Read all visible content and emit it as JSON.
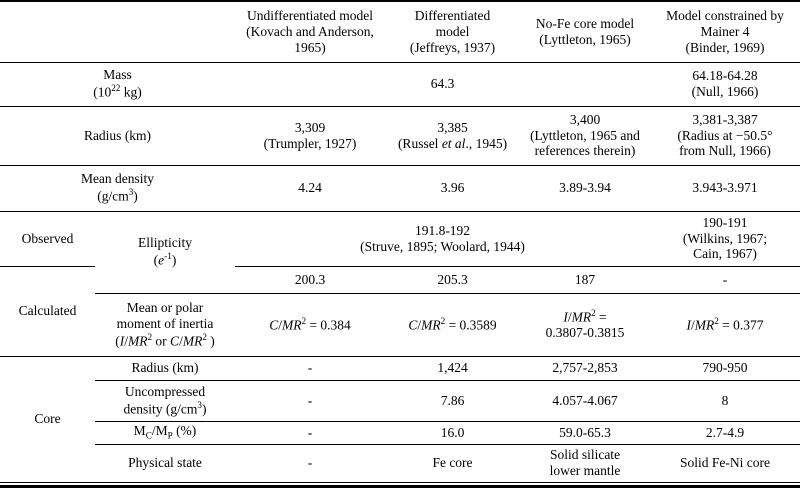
{
  "colors": {
    "text": "#000000",
    "rule": "#000000",
    "background": "#ffffff"
  },
  "table": {
    "header": {
      "undifferentiated": "Undifferentiated model<br>(Kovach and Anderson,<br>1965)",
      "differentiated": "Differentiated<br>model<br>(Jeffreys, 1937)",
      "no_fe": "No-Fe core model<br>(Lyttleton, 1965)",
      "mainer4": "Model constrained by<br>Mainer 4<br>(Binder, 1969)"
    },
    "groups": {
      "observed": "Observed",
      "calculated": "Calculated",
      "core": "Core"
    },
    "mass": {
      "label": "Mass<br>(10<sup>22</sup> kg)",
      "common": "64.3",
      "mainer4": "64.18-64.28<br>(Null, 1966)"
    },
    "radius": {
      "label": "Radius (km)",
      "undifferentiated": "3,309<br>(Trumpler, 1927)",
      "differentiated": "3,385<br>(Russel <i>et al</i>., 1945)",
      "no_fe": "3,400<br>(Lyttleton, 1965 and<br>references therein)",
      "mainer4": "3,381-3,387<br>(Radius at −50.5°<br>from Null, 1966)"
    },
    "mean_density": {
      "label": "Mean density<br>(g/cm<sup>3</sup>)",
      "undifferentiated": "4.24",
      "differentiated": "3.96",
      "no_fe": "3.89-3.94",
      "mainer4": "3.943-3.971"
    },
    "ellipticity": {
      "label": "Ellipticity<br>(<i>e</i><sup>-1</sup>)",
      "observed_common": "191.8-192<br>(Struve, 1895; Woolard, 1944)",
      "observed_mainer4": "190-191<br>(Wilkins, 1967;<br>Cain, 1967)",
      "calculated_undifferentiated": "200.3",
      "calculated_differentiated": "205.3",
      "calculated_no_fe": "187",
      "calculated_mainer4": "-"
    },
    "moment_of_inertia": {
      "label": "Mean or polar<br>moment of inertia<br>(<i>I</i>/<i>MR</i><sup>2</sup> or <i>C</i>/<i>MR</i><sup>2</sup> )",
      "undifferentiated": "<i>C</i>/<i>MR</i><sup>2</sup> = 0.384",
      "differentiated": "<i>C</i>/<i>MR</i><sup>2</sup> = 0.3589",
      "no_fe": "<i>I</i>/<i>MR</i><sup>2</sup> =<br>0.3807-0.3815",
      "mainer4": "<i>I</i>/<i>MR</i><sup>2</sup> = 0.377"
    },
    "core": {
      "radius": {
        "label": "Radius (km)",
        "undifferentiated": "-",
        "differentiated": "1,424",
        "no_fe": "2,757-2,853",
        "mainer4": "790-950"
      },
      "uncompressed_density": {
        "label": "Uncompressed<br>density (g/cm<sup>3</sup>)",
        "undifferentiated": "-",
        "differentiated": "7.86",
        "no_fe": "4.057-4.067",
        "mainer4": "8"
      },
      "core_mass_fraction": {
        "label": "M<sub>C</sub>/M<sub>P</sub> (%)",
        "undifferentiated": "-",
        "differentiated": "16.0",
        "no_fe": "59.0-65.3",
        "mainer4": "2.7-4.9"
      },
      "physical_state": {
        "label": "Physical state",
        "undifferentiated": "-",
        "differentiated": "Fe core",
        "no_fe": "Solid silicate<br>lower mantle",
        "mainer4": "Solid Fe-Ni core"
      }
    }
  }
}
